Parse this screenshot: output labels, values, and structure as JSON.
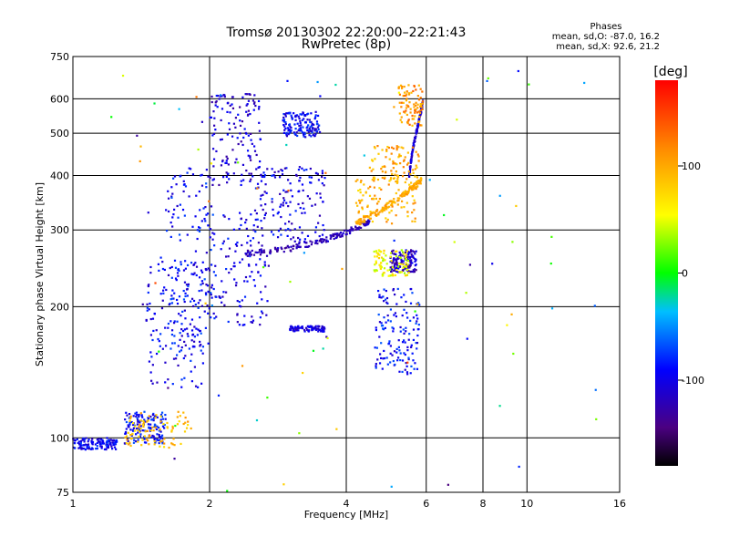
{
  "chart_data": {
    "type": "scatter",
    "title": "Tromsø 20130302 22:20:00–22:21:43",
    "subtitle": "RwPretec (8p)",
    "xlabel": "Frequency [MHz]",
    "ylabel": "Stationary phase Virtual Height [km]",
    "x_scale": "log",
    "y_scale": "log",
    "xlim": [
      1,
      16
    ],
    "ylim": [
      75,
      750
    ],
    "x_ticks": [
      1,
      2,
      4,
      6,
      8,
      10,
      16
    ],
    "x_tick_labels": [
      "1",
      "2",
      "4",
      "6",
      "8",
      "10",
      "16"
    ],
    "y_ticks": [
      75,
      100,
      200,
      300,
      400,
      500,
      600,
      750
    ],
    "y_tick_labels": [
      "75",
      "100",
      "200",
      "300",
      "400",
      "500",
      "600",
      "750"
    ],
    "grid": true,
    "phase_box": {
      "title": "Phases",
      "line1": "mean, sd,O: -87.0, 16.2",
      "line2": "mean, sd,X: 92.6, 21.2"
    },
    "colorbar": {
      "label": "[deg]",
      "min": -180,
      "max": 180,
      "ticks": [
        100,
        0,
        -100
      ],
      "tick_labels": [
        "100",
        "0",
        "-100"
      ]
    },
    "series": [
      {
        "note": "dense O-mode echo clusters (phase in deg)",
        "clusters": [
          {
            "x": [
              0.98,
              1.25
            ],
            "y": [
              94,
              100
            ],
            "phase": -95
          },
          {
            "x": [
              1.3,
              1.6
            ],
            "y": [
              97,
              115
            ],
            "phase": -90
          },
          {
            "x": [
              1.45,
              1.95
            ],
            "y": [
              130,
              260
            ],
            "phase": -95
          },
          {
            "x": [
              1.6,
              2.05
            ],
            "y": [
              160,
              420
            ],
            "phase": -90
          },
          {
            "x": [
              1.95,
              2.7
            ],
            "y": [
              180,
              330
            ],
            "phase": -100
          },
          {
            "x": [
              2.0,
              2.6
            ],
            "y": [
              380,
              620
            ],
            "phase": -110
          },
          {
            "x": [
              2.5,
              3.6
            ],
            "y": [
              280,
              420
            ],
            "phase": -100
          },
          {
            "x": [
              2.9,
              3.5
            ],
            "y": [
              490,
              560
            ],
            "phase": -95
          },
          {
            "x": [
              4.6,
              5.8
            ],
            "y": [
              140,
              220
            ],
            "phase": -90
          },
          {
            "x": [
              5.0,
              5.7
            ],
            "y": [
              240,
              270
            ],
            "phase": -115
          }
        ],
        "traces": [
          {
            "x": [
              2.4,
              3.0,
              3.6,
              4.1,
              4.5
            ],
            "y": [
              265,
              272,
              285,
              300,
              315
            ],
            "phase": -120
          },
          {
            "x": [
              3.0,
              3.3,
              3.6
            ],
            "y": [
              178,
              178,
              178
            ],
            "phase": -105
          },
          {
            "x": [
              5.5,
              5.6,
              5.75,
              5.9
            ],
            "y": [
              400,
              460,
              520,
              590
            ],
            "phase": -110
          }
        ]
      },
      {
        "note": "X-mode echo clusters (phase in deg)",
        "clusters": [
          {
            "x": [
              4.2,
              5.7
            ],
            "y": [
              310,
              395
            ],
            "phase": 95
          },
          {
            "x": [
              4.5,
              5.8
            ],
            "y": [
              380,
              470
            ],
            "phase": 100
          },
          {
            "x": [
              4.6,
              5.5
            ],
            "y": [
              235,
              270
            ],
            "phase": 55
          },
          {
            "x": [
              5.2,
              5.9
            ],
            "y": [
              520,
              650
            ],
            "phase": 110
          },
          {
            "x": [
              1.3,
              1.8
            ],
            "y": [
              95,
              115
            ],
            "phase": 90
          }
        ],
        "traces": [
          {
            "x": [
              4.2,
              4.7,
              5.2,
              5.6,
              5.85
            ],
            "y": [
              310,
              330,
              355,
              375,
              390
            ],
            "phase": 100
          }
        ]
      }
    ]
  }
}
